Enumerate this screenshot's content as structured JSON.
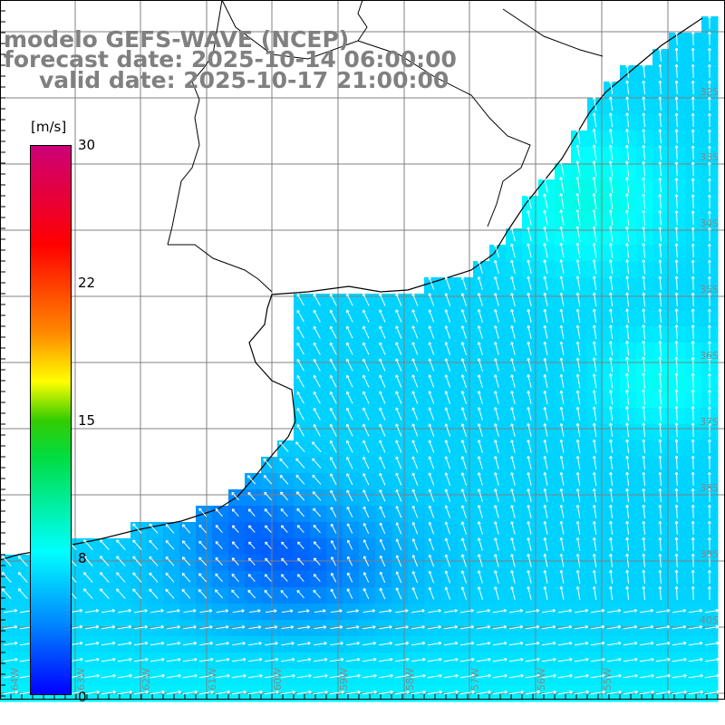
{
  "title": {
    "line1": "modelo GEFS-WAVE (NCEP)",
    "line2": "forecast date: 2025-10-14 06:00:00",
    "line3": "valid date: 2025-10-17 21:00:00"
  },
  "colorbar": {
    "unit": "[m/s]",
    "ticks": [
      "30",
      "22",
      "15",
      "8",
      "0"
    ],
    "vmin": 0,
    "vmax": 30
  },
  "grid": {
    "lat_labels": [
      "32S",
      "33S",
      "34S",
      "35S",
      "36S",
      "37S",
      "38S",
      "39S",
      "40S"
    ],
    "lon_labels": [
      "64W",
      "63W",
      "62W",
      "61W",
      "60W",
      "59W",
      "58W",
      "57W",
      "56W",
      "55W"
    ]
  },
  "colors": {
    "land": "#ffffff",
    "coastline": "#000000",
    "grid": "#808080",
    "arrows": "#ffffff"
  }
}
